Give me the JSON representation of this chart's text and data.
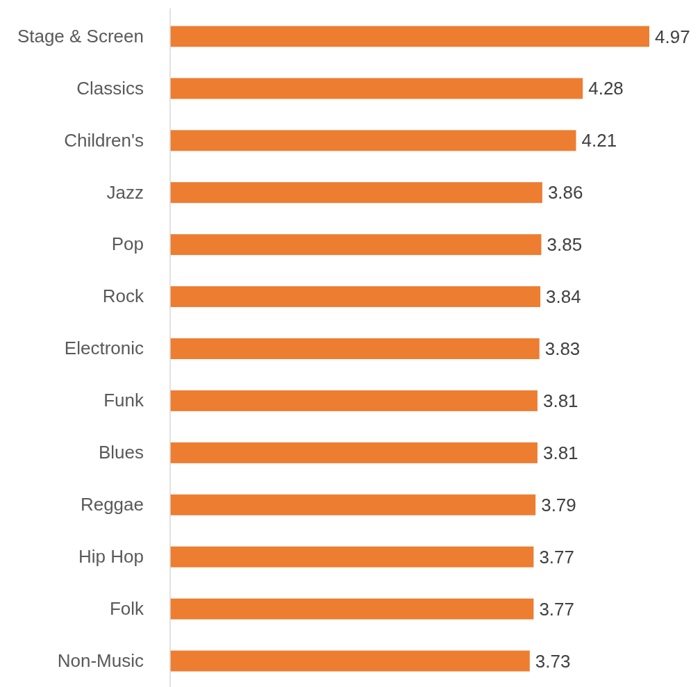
{
  "chart_data": {
    "type": "bar",
    "orientation": "horizontal",
    "categories": [
      "Stage & Screen",
      "Classics",
      "Children's",
      "Jazz",
      "Pop",
      "Rock",
      "Electronic",
      "Funk",
      "Blues",
      "Reggae",
      "Hip Hop",
      "Folk",
      "Non-Music"
    ],
    "values": [
      4.97,
      4.28,
      4.21,
      3.86,
      3.85,
      3.84,
      3.83,
      3.81,
      3.81,
      3.79,
      3.77,
      3.77,
      3.73
    ],
    "color": "#ed7d31",
    "data_labels": true
  }
}
